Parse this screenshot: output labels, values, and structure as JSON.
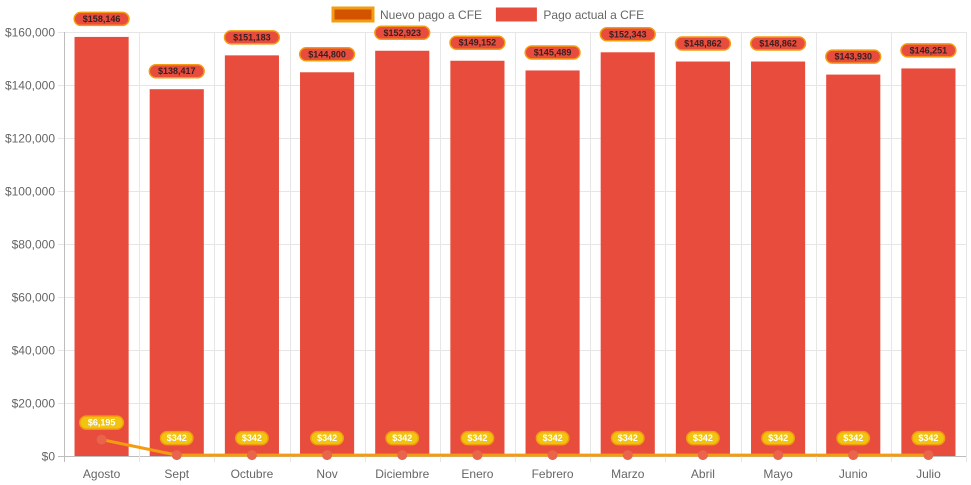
{
  "chart_data": {
    "type": "bar",
    "categories": [
      "Agosto",
      "Sept",
      "Octubre",
      "Nov",
      "Diciembre",
      "Enero",
      "Febrero",
      "Marzo",
      "Abril",
      "Mayo",
      "Junio",
      "Julio"
    ],
    "series": [
      {
        "name": "Nuevo pago a CFE",
        "type": "line",
        "color": "#f39c12",
        "point_color": "#e8644a",
        "values": [
          6195,
          342,
          342,
          342,
          342,
          342,
          342,
          342,
          342,
          342,
          342,
          342
        ],
        "labels": [
          "$6,195",
          "$342",
          "$342",
          "$342",
          "$342",
          "$342",
          "$342",
          "$342",
          "$342",
          "$342",
          "$342",
          "$342"
        ]
      },
      {
        "name": "Pago actual a CFE",
        "type": "bar",
        "color": "#e74c3c",
        "values": [
          158146,
          138417,
          151183,
          144800,
          152923,
          149152,
          145489,
          152343,
          148862,
          148862,
          143930,
          146251
        ],
        "labels": [
          "$158,146",
          "$138,417",
          "$151,183",
          "$144,800",
          "$152,923",
          "$149,152",
          "$145,489",
          "$152,343",
          "$148,862",
          "$148,862",
          "$143,930",
          "$146,251"
        ]
      }
    ],
    "ylim": [
      0,
      160000
    ],
    "yticks": [
      "$0",
      "$20,000",
      "$40,000",
      "$60,000",
      "$80,000",
      "$100,000",
      "$120,000",
      "$140,000",
      "$160,000"
    ],
    "grid": true,
    "legend_position": "top",
    "title": "",
    "xlabel": "",
    "ylabel": ""
  }
}
